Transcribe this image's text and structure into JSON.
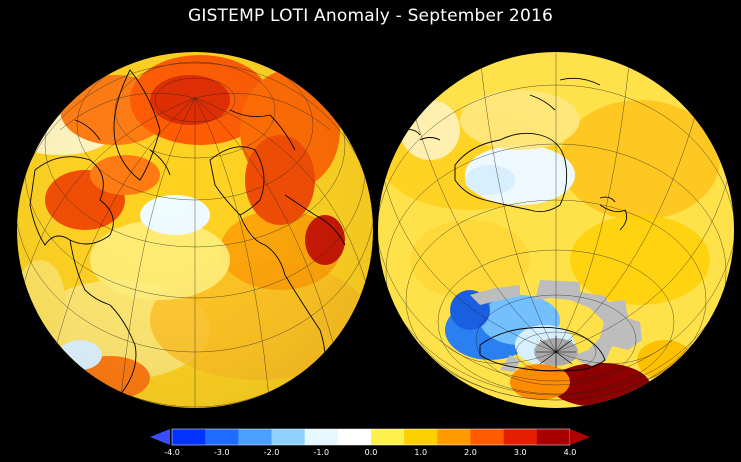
{
  "title": "GISTEMP LOTI Anomaly - September 2016",
  "colorbar": {
    "ticks": [
      "-4.0",
      "-3.0",
      "-2.0",
      "-1.0",
      "0.0",
      "1.0",
      "2.0",
      "3.0",
      "4.0"
    ],
    "colors": [
      "#0033ff",
      "#1f6bff",
      "#49a0ff",
      "#8fd2ff",
      "#e6f8ff",
      "#ffffff",
      "#fff14d",
      "#ffd000",
      "#ff9a00",
      "#ff5a00",
      "#e61e00",
      "#a80000"
    ],
    "under_color": "#3a4dff",
    "over_color": "#b00000"
  },
  "globes": [
    {
      "name": "northern-hemisphere",
      "base_color": "#ffd21f"
    },
    {
      "name": "southern-hemisphere",
      "base_color": "#ffe24a",
      "missing_data_color": "#bdbdbd"
    }
  ]
}
